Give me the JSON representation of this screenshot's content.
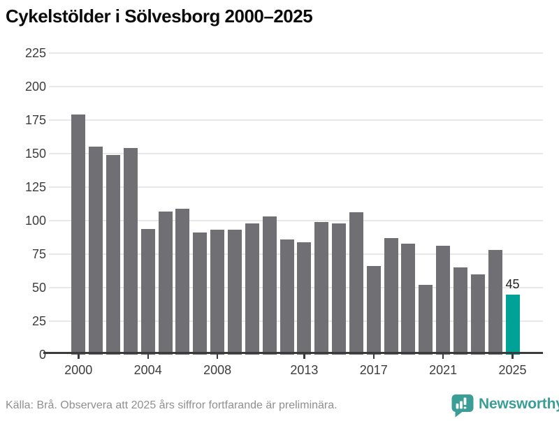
{
  "title": "Cykelstölder i Sölvesborg 2000–2025",
  "source_note": "Källa: Brå. Observera att 2025 års siffror fortfarande är preliminära.",
  "branding": {
    "name": "Newsworthy",
    "icon": "speech-bubble-bar-chart-icon",
    "color": "#3b9e96"
  },
  "chart_data": {
    "type": "bar",
    "title": "Cykelstölder i Sölvesborg 2000–2025",
    "categories": [
      2000,
      2001,
      2002,
      2003,
      2004,
      2005,
      2006,
      2007,
      2008,
      2009,
      2010,
      2011,
      2012,
      2013,
      2014,
      2015,
      2016,
      2017,
      2018,
      2019,
      2020,
      2021,
      2022,
      2023,
      2024,
      2025
    ],
    "values": [
      179,
      155,
      149,
      154,
      94,
      107,
      109,
      91,
      93,
      93,
      98,
      103,
      86,
      84,
      99,
      98,
      106,
      66,
      87,
      83,
      52,
      81,
      65,
      60,
      78,
      45
    ],
    "highlight_index": 25,
    "highlight_value_label": "45",
    "ylim": [
      0,
      225
    ],
    "y_ticks": [
      0,
      25,
      50,
      75,
      100,
      125,
      150,
      175,
      200,
      225
    ],
    "x_tick_labels": [
      "2000",
      "2004",
      "2008",
      "2013",
      "2017",
      "2021",
      "2025"
    ],
    "grid": "horizontal",
    "legend": "none",
    "colors": {
      "bar": "#706f74",
      "highlight": "#00a298",
      "gridline": "#e8e8e8",
      "axis": "#3b3b3b",
      "axis_label": "#3d3d3d",
      "value_label": "#1f1f1f",
      "title": "#0b0b0b",
      "source": "#8f8f8f"
    }
  }
}
